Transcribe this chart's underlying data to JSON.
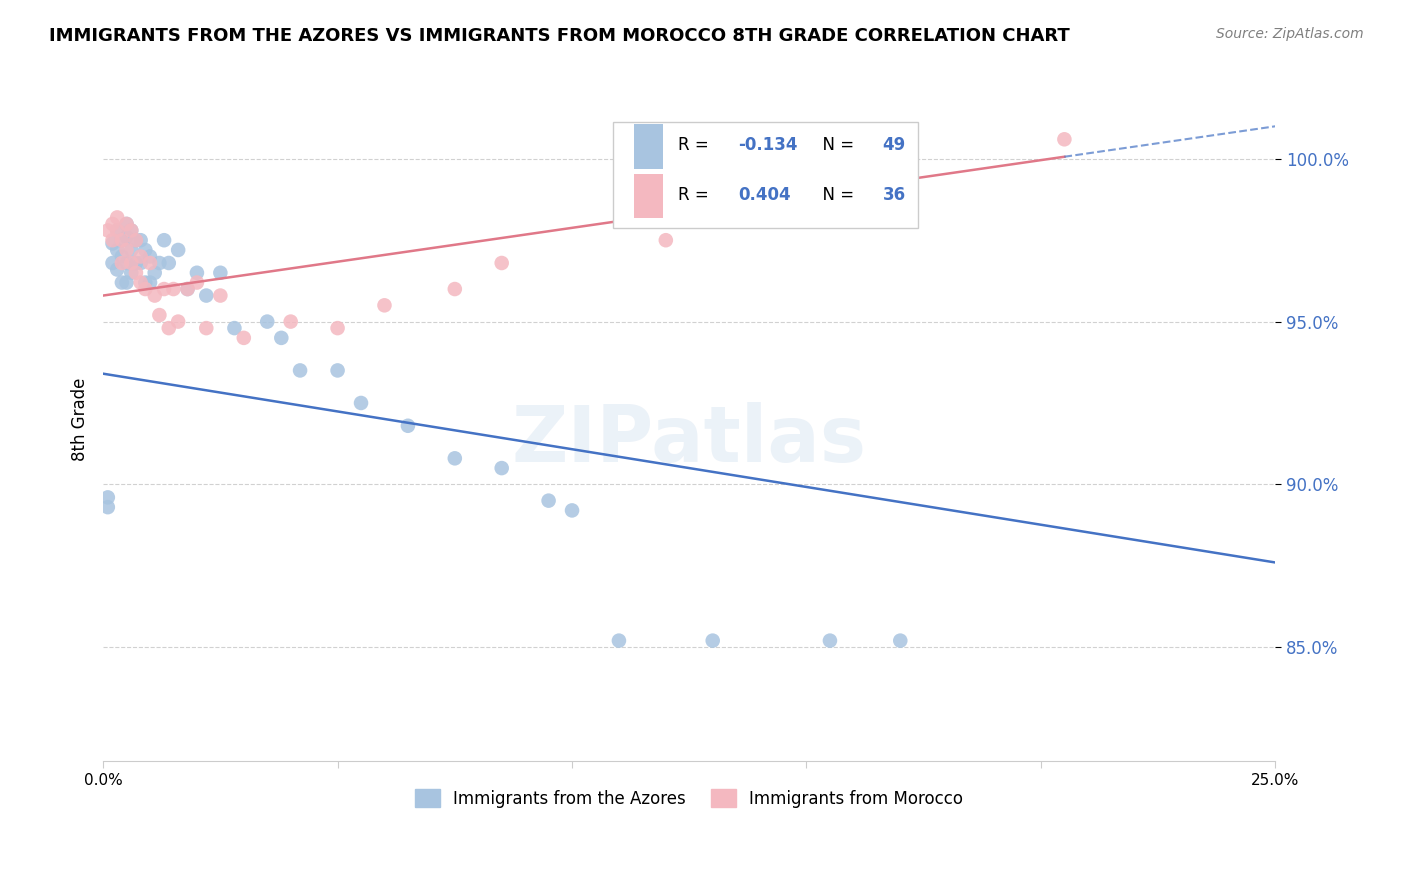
{
  "title": "IMMIGRANTS FROM THE AZORES VS IMMIGRANTS FROM MOROCCO 8TH GRADE CORRELATION CHART",
  "source": "Source: ZipAtlas.com",
  "ylabel": "8th Grade",
  "ytick_labels": [
    "85.0%",
    "90.0%",
    "95.0%",
    "100.0%"
  ],
  "ytick_values": [
    0.85,
    0.9,
    0.95,
    1.0
  ],
  "xtick_labels": [
    "0.0%",
    "",
    "",
    "",
    "",
    "",
    "",
    "",
    "",
    "25.0%"
  ],
  "xlim": [
    0.0,
    0.25
  ],
  "ylim": [
    0.815,
    1.025
  ],
  "legend_r_azores": "-0.134",
  "legend_n_azores": "49",
  "legend_r_morocco": "0.404",
  "legend_n_morocco": "36",
  "legend_label_azores": "Immigrants from the Azores",
  "legend_label_morocco": "Immigrants from Morocco",
  "color_azores": "#a8c4e0",
  "color_morocco": "#f4b8c0",
  "color_line_azores": "#4472c4",
  "color_line_morocco": "#e07888",
  "color_r_value": "#4472c4",
  "watermark": "ZIPatlas",
  "azores_x": [
    0.001,
    0.001,
    0.002,
    0.002,
    0.003,
    0.003,
    0.003,
    0.004,
    0.004,
    0.004,
    0.005,
    0.005,
    0.005,
    0.005,
    0.006,
    0.006,
    0.006,
    0.007,
    0.007,
    0.008,
    0.008,
    0.009,
    0.009,
    0.01,
    0.01,
    0.011,
    0.012,
    0.013,
    0.014,
    0.016,
    0.018,
    0.02,
    0.022,
    0.025,
    0.028,
    0.035,
    0.038,
    0.042,
    0.05,
    0.055,
    0.065,
    0.075,
    0.085,
    0.095,
    0.1,
    0.11,
    0.13,
    0.155,
    0.17
  ],
  "azores_y": [
    0.896,
    0.893,
    0.974,
    0.968,
    0.978,
    0.972,
    0.966,
    0.975,
    0.97,
    0.962,
    0.98,
    0.976,
    0.968,
    0.962,
    0.978,
    0.972,
    0.965,
    0.975,
    0.968,
    0.975,
    0.968,
    0.972,
    0.962,
    0.97,
    0.962,
    0.965,
    0.968,
    0.975,
    0.968,
    0.972,
    0.96,
    0.965,
    0.958,
    0.965,
    0.948,
    0.95,
    0.945,
    0.935,
    0.935,
    0.925,
    0.918,
    0.908,
    0.905,
    0.895,
    0.892,
    0.852,
    0.852,
    0.852,
    0.852
  ],
  "morocco_x": [
    0.001,
    0.002,
    0.002,
    0.003,
    0.003,
    0.004,
    0.004,
    0.005,
    0.005,
    0.006,
    0.006,
    0.007,
    0.007,
    0.008,
    0.008,
    0.009,
    0.01,
    0.011,
    0.012,
    0.013,
    0.014,
    0.015,
    0.016,
    0.018,
    0.02,
    0.022,
    0.025,
    0.03,
    0.04,
    0.05,
    0.06,
    0.075,
    0.085,
    0.12,
    0.16,
    0.205
  ],
  "morocco_y": [
    0.978,
    0.98,
    0.975,
    0.982,
    0.978,
    0.975,
    0.968,
    0.98,
    0.972,
    0.978,
    0.968,
    0.975,
    0.965,
    0.97,
    0.962,
    0.96,
    0.968,
    0.958,
    0.952,
    0.96,
    0.948,
    0.96,
    0.95,
    0.96,
    0.962,
    0.948,
    0.958,
    0.945,
    0.95,
    0.948,
    0.955,
    0.96,
    0.968,
    0.975,
    0.988,
    1.006
  ],
  "trend_az_x0": 0.0,
  "trend_az_y0": 0.934,
  "trend_az_x1": 0.25,
  "trend_az_y1": 0.876,
  "trend_mo_x0": 0.0,
  "trend_mo_y0": 0.958,
  "trend_mo_x1": 0.25,
  "trend_mo_y1": 1.01,
  "trend_mo_solid_end": 0.205,
  "trend_mo_dash_start": 0.205,
  "trend_mo_dash_end": 0.25
}
